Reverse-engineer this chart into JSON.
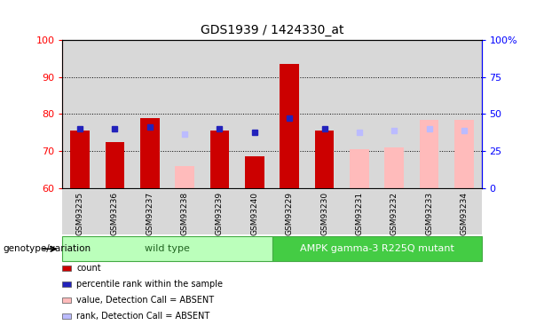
{
  "title": "GDS1939 / 1424330_at",
  "samples": [
    "GSM93235",
    "GSM93236",
    "GSM93237",
    "GSM93238",
    "GSM93239",
    "GSM93240",
    "GSM93229",
    "GSM93230",
    "GSM93231",
    "GSM93232",
    "GSM93233",
    "GSM93234"
  ],
  "count_values": [
    75.5,
    72.5,
    79.0,
    null,
    75.5,
    68.5,
    93.5,
    75.5,
    null,
    null,
    null,
    null
  ],
  "rank_values": [
    76.0,
    76.0,
    76.5,
    null,
    76.0,
    75.0,
    79.0,
    76.0,
    null,
    null,
    null,
    null
  ],
  "absent_count": [
    null,
    null,
    null,
    66.0,
    null,
    null,
    null,
    null,
    70.5,
    71.0,
    78.5,
    78.5
  ],
  "absent_rank": [
    null,
    null,
    null,
    74.5,
    null,
    null,
    null,
    null,
    75.0,
    75.5,
    76.0,
    75.5
  ],
  "ylim": [
    60,
    100
  ],
  "yticks": [
    60,
    70,
    80,
    90,
    100
  ],
  "y2lim": [
    0,
    100
  ],
  "y2ticks": [
    0,
    25,
    50,
    75,
    100
  ],
  "y2ticklabels": [
    "0",
    "25",
    "50",
    "75",
    "100%"
  ],
  "color_count": "#cc0000",
  "color_rank": "#2222bb",
  "color_absent_count": "#ffbbbb",
  "color_absent_rank": "#bbbbff",
  "bar_width": 0.55,
  "wt_color": "#bbffbb",
  "mt_color": "#44cc44",
  "wt_edge_color": "#44aa44",
  "mt_edge_color": "#44aa44",
  "wt_text_color": "#226622",
  "mt_text_color": "white",
  "genotype_label": "genotype/variation",
  "wild_type_label": "wild type",
  "mutant_label": "AMPK gamma-3 R225Q mutant",
  "legend_items": [
    {
      "label": "count",
      "color": "#cc0000"
    },
    {
      "label": "percentile rank within the sample",
      "color": "#2222bb"
    },
    {
      "label": "value, Detection Call = ABSENT",
      "color": "#ffbbbb"
    },
    {
      "label": "rank, Detection Call = ABSENT",
      "color": "#bbbbff"
    }
  ]
}
